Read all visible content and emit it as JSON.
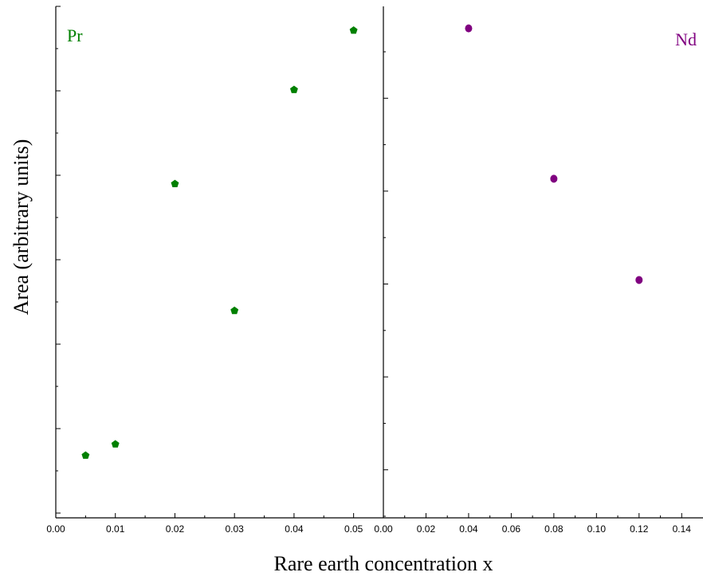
{
  "chart_data": {
    "type": "scatter",
    "xlabel": "Rare earth concentration x",
    "ylabel": "Area (arbitrary units)",
    "panels": [
      {
        "label": "Pr",
        "color": "#008000",
        "marker": "pentagon",
        "xlim": [
          0.0,
          0.055
        ],
        "xticks": [
          "0.00",
          "0.01",
          "0.02",
          "0.03",
          "0.04",
          "0.05"
        ],
        "ylim": [
          0,
          1
        ],
        "x": [
          0.005,
          0.01,
          0.02,
          0.03,
          0.04,
          0.05
        ],
        "y": [
          0.122,
          0.144,
          0.653,
          0.405,
          0.837,
          0.953
        ]
      },
      {
        "label": "Nd",
        "color": "#800080",
        "marker": "circle",
        "xlim": [
          0.0,
          0.15
        ],
        "xticks": [
          "0.00",
          "0.02",
          "0.04",
          "0.06",
          "0.08",
          "0.10",
          "0.12",
          "0.14"
        ],
        "ylim": [
          0,
          1
        ],
        "x": [
          0.04,
          0.08,
          0.12
        ],
        "y": [
          0.957,
          0.663,
          0.465
        ]
      }
    ]
  }
}
